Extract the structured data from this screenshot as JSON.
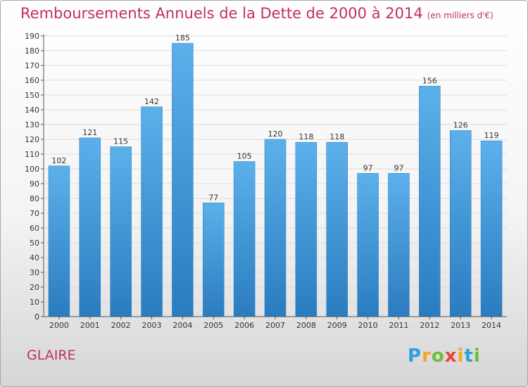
{
  "header": {
    "title": "Remboursements Annuels de la Dette de 2000 à 2014",
    "unit": "(en milliers d'€)"
  },
  "commune": "GLAIRE",
  "logo": {
    "text": "Proxiti",
    "letters": [
      "P",
      "r",
      "o",
      "x",
      "i",
      "t",
      "i"
    ],
    "colors": [
      "#2f9fe0",
      "#f5a623",
      "#6bbf3a",
      "#e8423e",
      "#f5a623",
      "#2f9fe0",
      "#6bbf3a"
    ]
  },
  "chart_data": {
    "type": "bar",
    "categories": [
      "2000",
      "2001",
      "2002",
      "2003",
      "2004",
      "2005",
      "2006",
      "2007",
      "2008",
      "2009",
      "2010",
      "2011",
      "2012",
      "2013",
      "2014"
    ],
    "values": [
      102,
      121,
      115,
      142,
      185,
      77,
      105,
      120,
      118,
      118,
      97,
      97,
      156,
      126,
      119
    ],
    "ylim": [
      0,
      190
    ],
    "ytick_step": 10,
    "grid": true,
    "bar_color": "#3d95d8",
    "axis_color": "#555555"
  }
}
